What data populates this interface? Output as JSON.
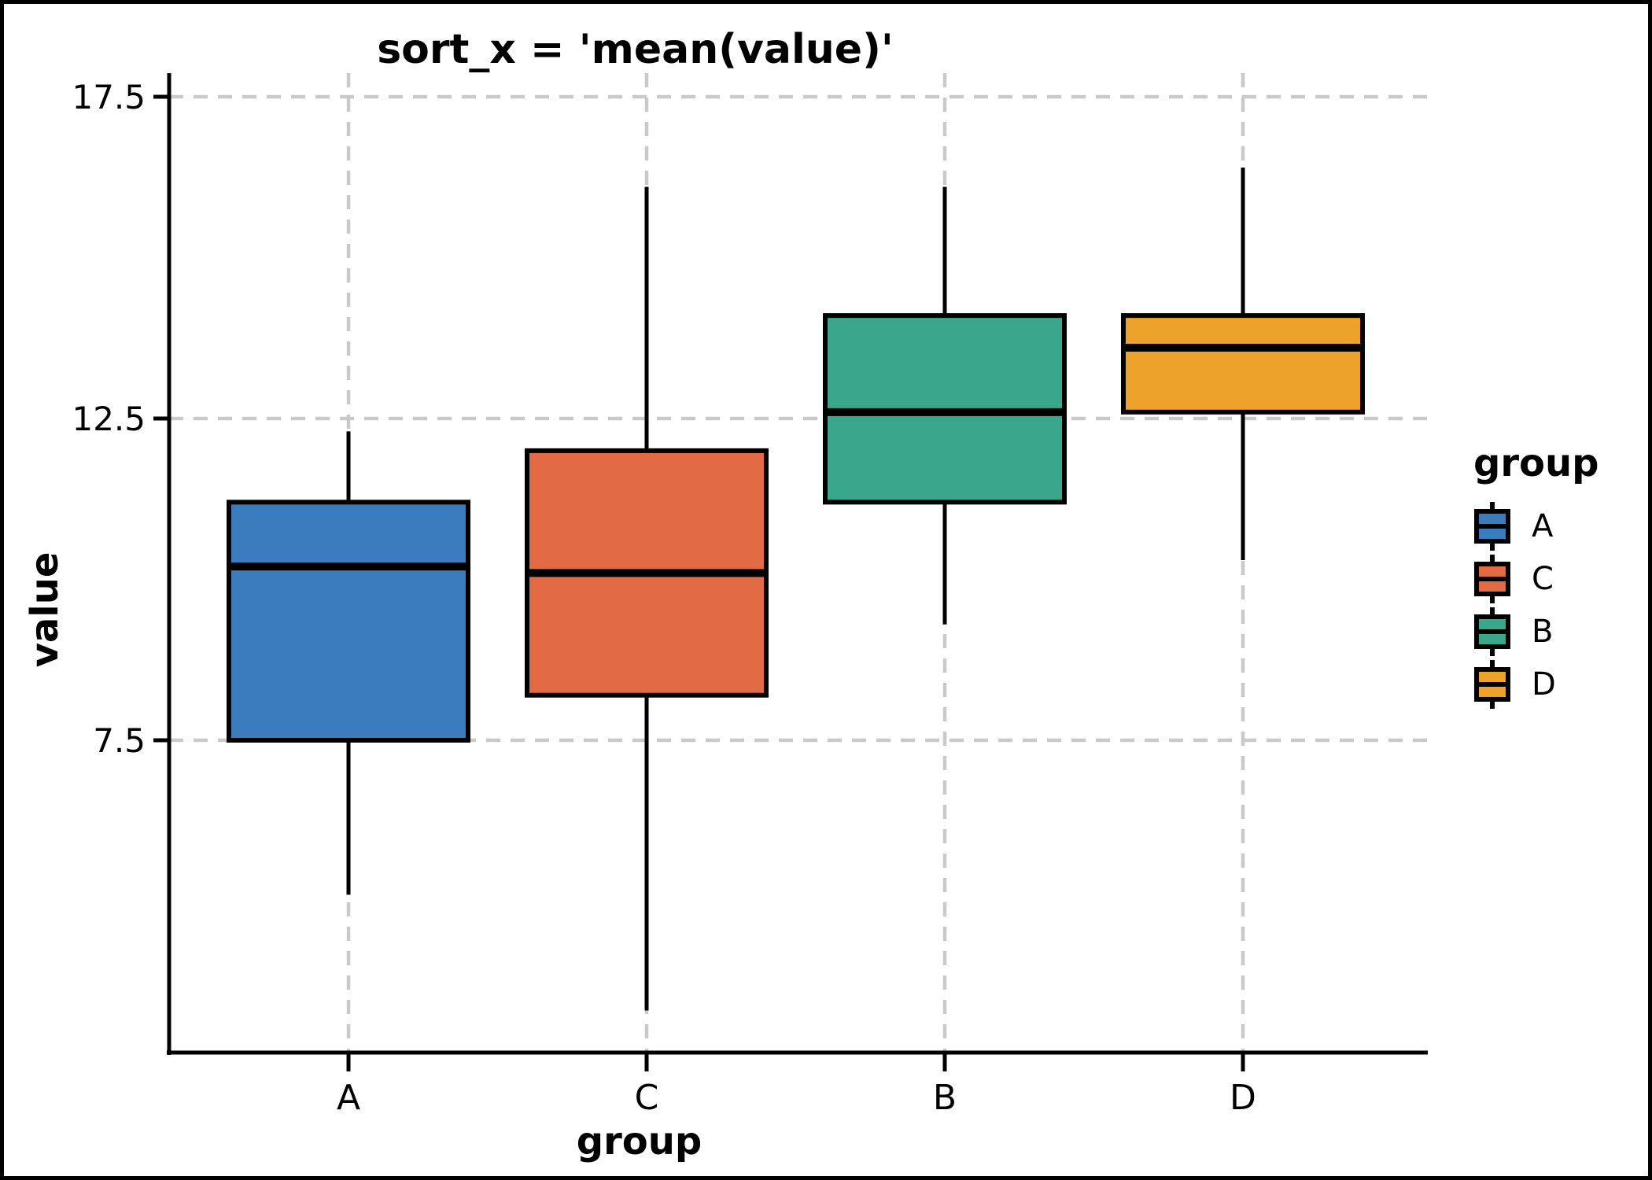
{
  "chart_data": {
    "type": "boxplot",
    "title": "sort_x = 'mean(value)'",
    "xlabel": "group",
    "ylabel": "value",
    "categories": [
      "A",
      "C",
      "B",
      "D"
    ],
    "series": [
      {
        "name": "A",
        "color": "#3A7CBE",
        "whisker_low": 5.1,
        "q1": 7.5,
        "median": 10.2,
        "q3": 11.2,
        "whisker_high": 12.3
      },
      {
        "name": "C",
        "color": "#E26A44",
        "whisker_low": 3.3,
        "q1": 8.2,
        "median": 10.1,
        "q3": 12.0,
        "whisker_high": 16.1
      },
      {
        "name": "B",
        "color": "#3AA78C",
        "whisker_low": 9.3,
        "q1": 11.2,
        "median": 12.6,
        "q3": 14.1,
        "whisker_high": 16.1
      },
      {
        "name": "D",
        "color": "#EDA22B",
        "whisker_low": 10.3,
        "q1": 12.6,
        "median": 13.6,
        "q3": 14.1,
        "whisker_high": 16.4
      }
    ],
    "y_ticks": [
      7.5,
      12.5,
      17.5
    ],
    "ylim": [
      2.65,
      17.9
    ],
    "grid": "dashed-gray",
    "grid_color": "#c9c9c9",
    "legend_position": "right"
  },
  "legend": {
    "title": "group",
    "items": [
      {
        "label": "A",
        "color": "#3A7CBE"
      },
      {
        "label": "C",
        "color": "#E26A44"
      },
      {
        "label": "B",
        "color": "#3AA78C"
      },
      {
        "label": "D",
        "color": "#EDA22B"
      }
    ]
  }
}
